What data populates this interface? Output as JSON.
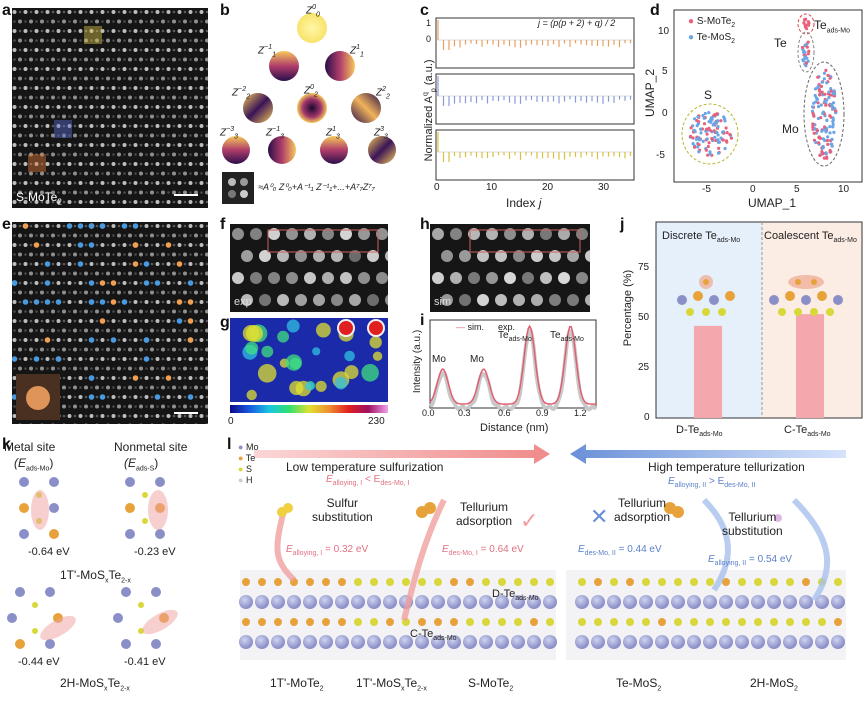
{
  "panels": {
    "a": "a",
    "b": "b",
    "c": "c",
    "d": "d",
    "e": "e",
    "f": "f",
    "g": "g",
    "h": "h",
    "i": "i",
    "j": "j",
    "k": "k",
    "l": "l"
  },
  "a": {
    "caption": "S-MoTe",
    "caption_sub": "2"
  },
  "b": {
    "zernike_labels": [
      {
        "base": "Z",
        "sup": "0",
        "sub": "0"
      },
      {
        "base": "Z",
        "sup": "−1",
        "sub": "1"
      },
      {
        "base": "Z",
        "sup": "1",
        "sub": "1"
      },
      {
        "base": "Z",
        "sup": "−2",
        "sub": "2"
      },
      {
        "base": "Z",
        "sup": "0",
        "sub": "2"
      },
      {
        "base": "Z",
        "sup": "2",
        "sub": "2"
      },
      {
        "base": "Z",
        "sup": "−3",
        "sub": "3"
      },
      {
        "base": "Z",
        "sup": "−1",
        "sub": "3"
      },
      {
        "base": "Z",
        "sup": "1",
        "sub": "3"
      },
      {
        "base": "Z",
        "sup": "3",
        "sub": "3"
      }
    ],
    "formula": "≈A⁰₀ Z⁰₀+A⁻¹₁ Z⁻¹₁+...+A⁷₇Z⁷₇"
  },
  "c": {
    "equation": "j = (p(p + 2) + q) / 2",
    "ylabel": "Normalized A",
    "ylabel_sup": "q",
    "ylabel_sub": "p",
    "ylabel_unit": " (a.u.)",
    "xlabel": "Index ",
    "xlabel_italic": "j",
    "xticks": [
      "0",
      "10",
      "20",
      "30"
    ],
    "yticks": [
      "1",
      "0"
    ]
  },
  "chart_data": {
    "type": "scatter",
    "title": "",
    "xlabel": "UMAP_1",
    "ylabel": "UMAP_2",
    "xticks": [
      "-5",
      "0",
      "5",
      "10"
    ],
    "yticks": [
      "10",
      "5",
      "0",
      "-5"
    ],
    "xlim": [
      -8,
      12
    ],
    "ylim": [
      -9,
      12
    ],
    "series": [
      {
        "name": "S-MoTe",
        "name_sub": "2",
        "color": "#e8607a"
      },
      {
        "name": "Te-MoS",
        "name_sub": "2",
        "color": "#6aa6e6"
      }
    ],
    "annotations": [
      {
        "text": "S",
        "color": "#b9b62c"
      },
      {
        "text": "Te",
        "color": "#e8a23a"
      },
      {
        "text": "Te",
        "sub": "ads-Mo",
        "color": "#d94040"
      },
      {
        "text": "Mo",
        "color": "#7a7ac8"
      }
    ]
  },
  "f": {
    "tag": "exp"
  },
  "h": {
    "tag": "sim"
  },
  "g": {
    "colorbar_min": "0",
    "colorbar_max": "230"
  },
  "i": {
    "legend_sim": "sim.",
    "legend_exp": "exp.",
    "peak_labels": [
      "Mo",
      "Mo",
      "Te",
      "Te"
    ],
    "peak_sub": "ads-Mo",
    "ylabel": "Intensity (a.u.)",
    "xlabel": "Distance (nm)",
    "xticks": [
      "0.0",
      "0.3",
      "0.6",
      "0.9",
      "1.2"
    ]
  },
  "j": {
    "ylabel": "Percentage (%)",
    "yticks": [
      "75",
      "50",
      "25",
      "0"
    ],
    "categories": [
      "D-Te",
      "C-Te"
    ],
    "category_sub": "ads-Mo",
    "values": [
      47,
      53
    ],
    "headers": [
      "Discrete Te",
      "Coalescent Te"
    ],
    "header_sub": "ads-Mo",
    "bar_color": "#f4a7ad"
  },
  "k": {
    "metal_site": "Metal site",
    "metal_energy": "(E",
    "metal_energy_sub": "ads-Mo",
    "nonmetal_site": "Nonmetal site",
    "nonmetal_energy": "(E",
    "nonmetal_energy_sub": "ads-S",
    "energies_top": [
      "-0.64 eV",
      "-0.23 eV"
    ],
    "energies_bottom": [
      "-0.44 eV",
      "-0.41 eV"
    ],
    "phase_top": "1T'-MoS",
    "phase_top_sub": "x",
    "phase_top_mid": "Te",
    "phase_top_sub2": "2-x",
    "phase_bottom": "2H-MoS",
    "phase_bottom_sub": "x",
    "phase_bottom_mid": "Te",
    "phase_bottom_sub2": "2-x"
  },
  "l": {
    "legend": [
      "Mo",
      "Te",
      "S",
      "H"
    ],
    "legend_colors": [
      "#8a8fc8",
      "#e8a23a",
      "#d8d83a",
      "#f0f0f0"
    ],
    "low_temp": "Low temperature sulfurization",
    "high_temp": "High temperature tellurization",
    "cmp_low": "E",
    "cmp_low_sub1": "alloying, I",
    "cmp_low_mid": " < E",
    "cmp_low_sub2": "des-Mo, I",
    "cmp_high": "E",
    "cmp_high_sub1": "alloying, II",
    "cmp_high_mid": " > E",
    "cmp_high_sub2": "des-Mo, II",
    "sulfur_substitution": [
      "Sulfur",
      "substitution"
    ],
    "tellurium_adsorption": [
      "Tellurium",
      "adsorption"
    ],
    "tellurium_adsorption_2": [
      "Tellurium",
      "adsorption"
    ],
    "tellurium_substitution": [
      "Tellurium",
      "substitution"
    ],
    "e1": "E",
    "e1_sub": "alloying, I",
    "e1_val": " = 0.32 eV",
    "e2": "E",
    "e2_sub": "des-Mo, I",
    "e2_val": " = 0.64 eV",
    "e3": "E",
    "e3_sub": "des-Mo, II",
    "e3_val": " = 0.44 eV",
    "e4": "E",
    "e4_sub": "alloying, II",
    "e4_val": " = 0.54 eV",
    "d_te": "D-Te",
    "c_te": "C-Te",
    "te_sub": "ads-Mo",
    "stages": [
      {
        "main": "1T'-MoTe",
        "sub": "2",
        "tail": ""
      },
      {
        "main": "1T'-MoS",
        "sub": "x",
        "tail": "Te",
        "sub2": "2-x"
      },
      {
        "main": "S-MoTe",
        "sub": "2",
        "tail": ""
      },
      {
        "main": "Te-MoS",
        "sub": "2",
        "tail": ""
      },
      {
        "main": "2H-MoS",
        "sub": "2",
        "tail": ""
      }
    ]
  }
}
